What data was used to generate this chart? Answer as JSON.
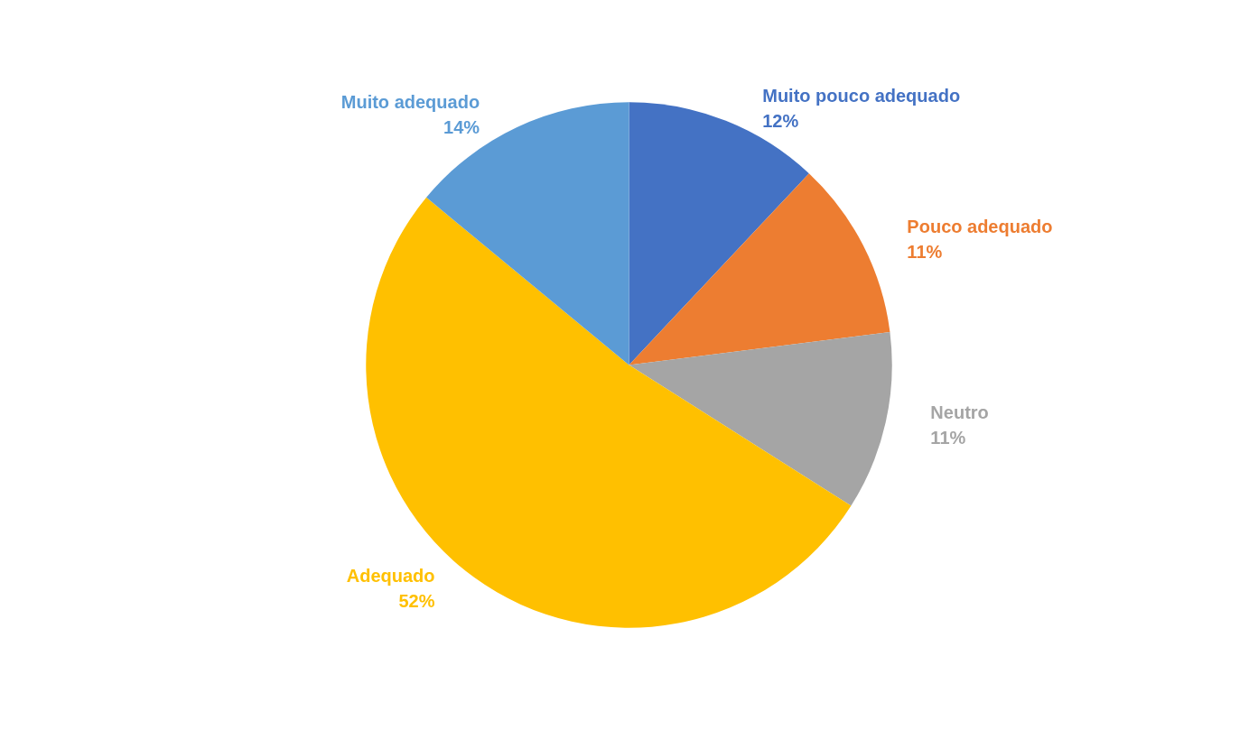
{
  "chart_data": {
    "type": "pie",
    "categories": [
      "Muito pouco adequado",
      "Pouco adequado",
      "Neutro",
      "Adequado",
      "Muito adequado"
    ],
    "values": [
      12,
      11,
      11,
      52,
      14
    ],
    "value_labels": [
      "12%",
      "11%",
      "11%",
      "52%",
      "14%"
    ],
    "colors": [
      "#4472c4",
      "#ed7d31",
      "#a5a5a5",
      "#ffc000",
      "#5b9bd5"
    ],
    "legend": false
  }
}
